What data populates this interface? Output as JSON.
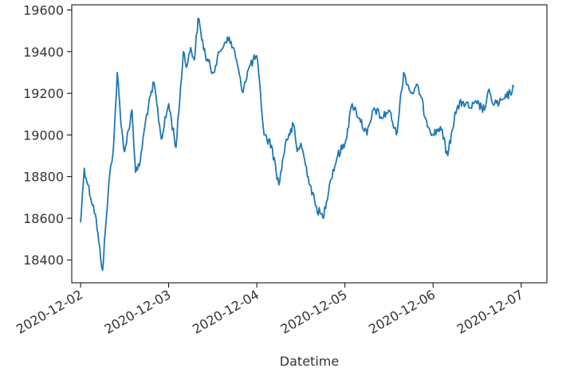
{
  "chart_data": {
    "type": "line",
    "title": "",
    "xlabel": "Datetime",
    "ylabel": "",
    "xlim": [
      "2020-12-01T21:36:00",
      "2020-12-07T07:00:00"
    ],
    "ylim": [
      18290,
      19625
    ],
    "xticks": [
      "2020-12-02",
      "2020-12-03",
      "2020-12-04",
      "2020-12-05",
      "2020-12-06",
      "2020-12-07"
    ],
    "yticks": [
      18400,
      18600,
      18800,
      19000,
      19200,
      19400,
      19600
    ],
    "grid": false,
    "line_color": "#1f77b4",
    "series": [
      {
        "x": [
          "2020-12-02T00:00:00",
          "2020-12-02T01:00:00",
          "2020-12-02T02:00:00",
          "2020-12-02T04:00:00",
          "2020-12-02T05:00:00",
          "2020-12-02T06:00:00",
          "2020-12-02T07:00:00",
          "2020-12-02T08:00:00",
          "2020-12-02T09:00:00",
          "2020-12-02T10:00:00",
          "2020-12-02T11:00:00",
          "2020-12-02T12:00:00",
          "2020-12-02T14:00:00",
          "2020-12-02T15:00:00",
          "2020-12-02T16:00:00",
          "2020-12-02T18:00:00",
          "2020-12-02T20:00:00",
          "2020-12-02T22:00:00",
          "2020-12-03T00:00:00",
          "2020-12-03T02:00:00",
          "2020-12-03T04:00:00",
          "2020-12-03T05:00:00",
          "2020-12-03T06:00:00",
          "2020-12-03T07:00:00",
          "2020-12-03T08:00:00",
          "2020-12-03T10:00:00",
          "2020-12-03T12:00:00",
          "2020-12-03T14:00:00",
          "2020-12-03T16:00:00",
          "2020-12-03T18:00:00",
          "2020-12-03T20:00:00",
          "2020-12-03T22:00:00",
          "2020-12-04T00:00:00",
          "2020-12-04T02:00:00",
          "2020-12-04T04:00:00",
          "2020-12-04T06:00:00",
          "2020-12-04T08:00:00",
          "2020-12-04T09:00:00",
          "2020-12-04T10:00:00",
          "2020-12-04T11:00:00",
          "2020-12-04T12:00:00",
          "2020-12-04T14:00:00",
          "2020-12-04T16:00:00",
          "2020-12-04T18:00:00",
          "2020-12-04T20:00:00",
          "2020-12-04T22:00:00",
          "2020-12-05T00:00:00",
          "2020-12-05T02:00:00",
          "2020-12-05T04:00:00",
          "2020-12-05T06:00:00",
          "2020-12-05T08:00:00",
          "2020-12-05T10:00:00",
          "2020-12-05T12:00:00",
          "2020-12-05T14:00:00",
          "2020-12-05T16:00:00",
          "2020-12-05T18:00:00",
          "2020-12-05T20:00:00",
          "2020-12-05T22:00:00",
          "2020-12-06T00:00:00",
          "2020-12-06T02:00:00",
          "2020-12-06T04:00:00",
          "2020-12-06T06:00:00",
          "2020-12-06T08:00:00",
          "2020-12-06T10:00:00",
          "2020-12-06T12:00:00",
          "2020-12-06T14:00:00",
          "2020-12-06T15:00:00",
          "2020-12-06T16:00:00",
          "2020-12-06T18:00:00",
          "2020-12-06T20:00:00",
          "2020-12-06T22:00:00"
        ],
        "y": [
          18580,
          18840,
          18760,
          18620,
          18480,
          18350,
          18600,
          18820,
          18950,
          19300,
          19050,
          18920,
          19120,
          18820,
          18850,
          19100,
          19250,
          18980,
          19150,
          18940,
          19400,
          19330,
          19420,
          19360,
          19560,
          19380,
          19300,
          19400,
          19470,
          19400,
          19210,
          19330,
          19380,
          19000,
          18950,
          18760,
          18980,
          19000,
          19050,
          18920,
          18960,
          18800,
          18660,
          18600,
          18780,
          18900,
          18960,
          19150,
          19080,
          19000,
          19130,
          19080,
          19120,
          19000,
          19300,
          19200,
          19230,
          19080,
          19000,
          19040,
          18900,
          19110,
          19160,
          19130,
          19150,
          19120,
          19210,
          19160,
          19150,
          19180,
          19230
        ]
      }
    ]
  }
}
